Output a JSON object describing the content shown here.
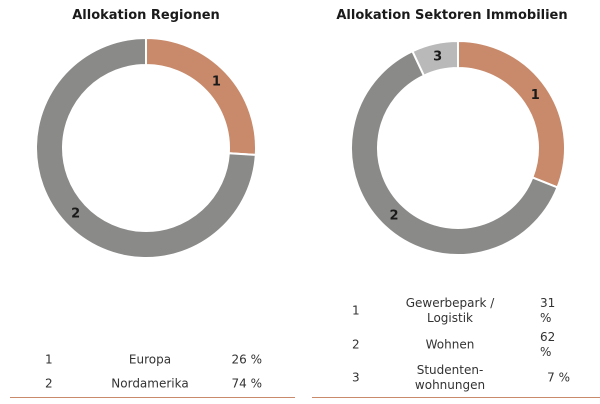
{
  "chart_data": [
    {
      "type": "pie",
      "title": "Allokation Regionen",
      "ids": [
        "1",
        "2"
      ],
      "categories": [
        "Europa",
        "Nordamerika"
      ],
      "values": [
        26,
        74
      ],
      "value_labels": [
        "26 %",
        "74 %"
      ],
      "colors": [
        "#c88a6b",
        "#8a8b89"
      ]
    },
    {
      "type": "pie",
      "title": "Allokation Sektoren Immobilien",
      "ids": [
        "1",
        "2",
        "3"
      ],
      "categories": [
        "Gewerbepark /\nLogistik",
        "Wohnen",
        "Studenten-\nwohnungen"
      ],
      "values": [
        31,
        62,
        7
      ],
      "value_labels": [
        "31 %",
        "62 %",
        "7 %"
      ],
      "colors": [
        "#c88a6b",
        "#8a8b89",
        "#b8b9b8"
      ]
    }
  ]
}
